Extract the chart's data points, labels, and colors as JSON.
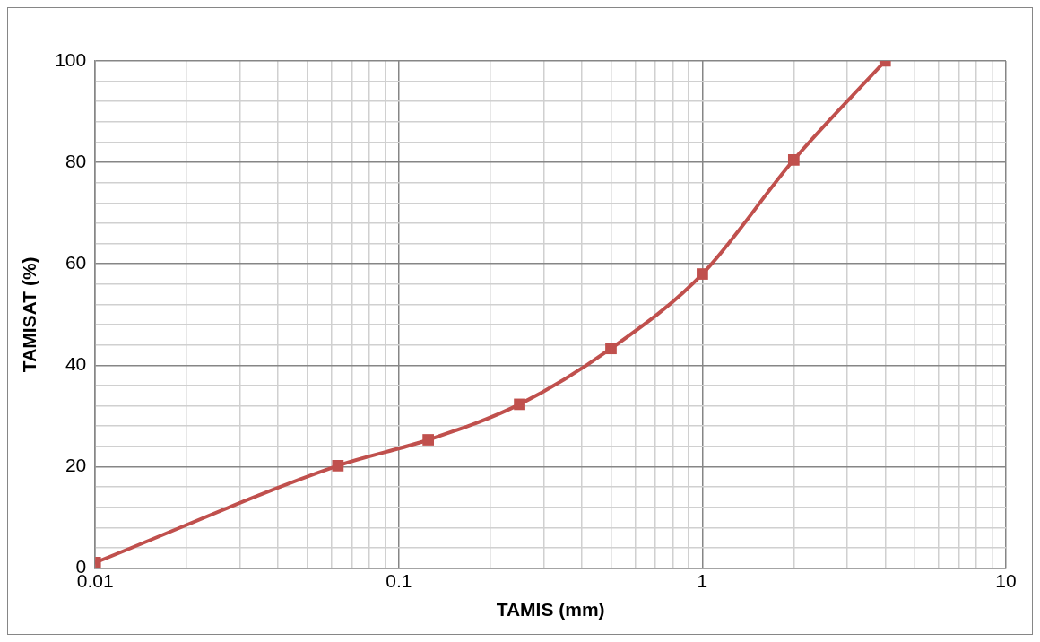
{
  "chart_data": {
    "type": "line",
    "xlabel": "TAMIS (mm)",
    "ylabel": "TAMISAT (%)",
    "x": [
      0.01,
      0.063,
      0.125,
      0.25,
      0.5,
      1,
      2,
      4
    ],
    "series": [
      {
        "color": "#c0504d",
        "values": [
          1.1,
          20.2,
          25.3,
          32.3,
          43.3,
          58.0,
          80.5,
          100
        ]
      }
    ],
    "log": "x",
    "xlim": [
      0.01,
      10
    ],
    "xticks": [
      0.01,
      {
        "value": 0.02,
        "label": null
      },
      {
        "value": 0.03,
        "label": null
      },
      {
        "value": 0.04,
        "label": null
      },
      {
        "value": 0.05,
        "label": null
      },
      {
        "value": 0.06,
        "label": null
      },
      {
        "value": 0.07,
        "label": null
      },
      {
        "value": 0.08,
        "label": null
      },
      {
        "value": 0.09,
        "label": null
      },
      0.1,
      {
        "value": 0.2,
        "label": null
      },
      {
        "value": 0.3,
        "label": null
      },
      {
        "value": 0.4,
        "label": null
      },
      {
        "value": 0.5,
        "label": null
      },
      {
        "value": 0.6,
        "label": null
      },
      {
        "value": 0.7,
        "label": null
      },
      {
        "value": 0.8,
        "label": null
      },
      {
        "value": 0.9,
        "label": null
      },
      1,
      {
        "value": 2,
        "label": null
      },
      {
        "value": 3,
        "label": null
      },
      {
        "value": 4,
        "label": null
      },
      {
        "value": 5,
        "label": null
      },
      {
        "value": 6,
        "label": null
      },
      {
        "value": 7,
        "label": null
      },
      {
        "value": 8,
        "label": null
      },
      {
        "value": 9,
        "label": null
      },
      10
    ],
    "ylim": [
      0,
      100
    ],
    "yticks": [
      0,
      {
        "value": 4,
        "label": null
      },
      {
        "value": 8,
        "label": null
      },
      {
        "value": 12,
        "label": null
      },
      {
        "value": 16,
        "label": null
      },
      20,
      {
        "value": 24,
        "label": null
      },
      {
        "value": 28,
        "label": null
      },
      {
        "value": 32,
        "label": null
      },
      {
        "value": 36,
        "label": null
      },
      40,
      {
        "value": 44,
        "label": null
      },
      {
        "value": 48,
        "label": null
      },
      {
        "value": 52,
        "label": null
      },
      {
        "value": 56,
        "label": null
      },
      60,
      {
        "value": 64,
        "label": null
      },
      {
        "value": 68,
        "label": null
      },
      {
        "value": 72,
        "label": null
      },
      {
        "value": 76,
        "label": null
      },
      80,
      {
        "value": 84,
        "label": null
      },
      {
        "value": 88,
        "label": null
      },
      {
        "value": 92,
        "label": null
      },
      {
        "value": 96,
        "label": null
      },
      100
    ],
    "grid": true,
    "legend": false,
    "marker": "square",
    "line_style": "solid"
  }
}
